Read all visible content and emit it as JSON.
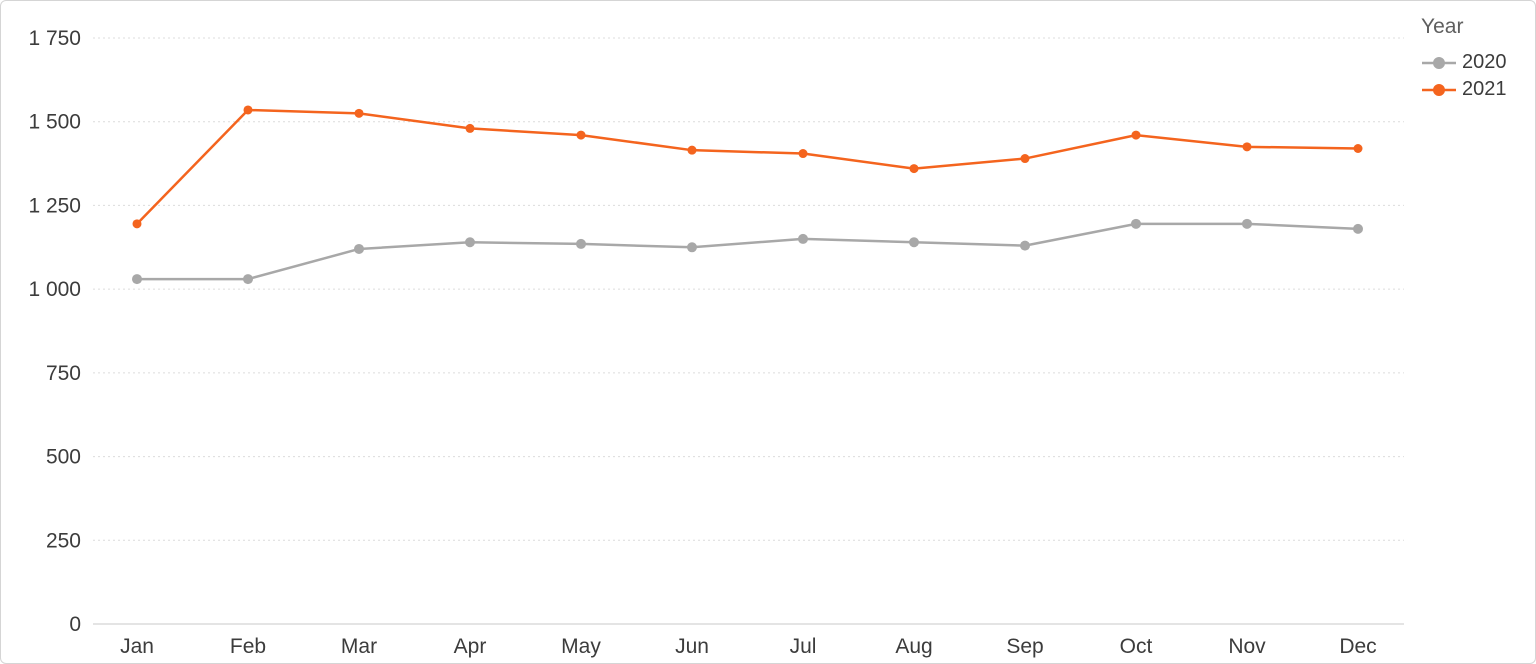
{
  "legend": {
    "title": "Year"
  },
  "chart_data": {
    "type": "line",
    "title": "",
    "xlabel": "",
    "ylabel": "",
    "categories": [
      "Jan",
      "Feb",
      "Mar",
      "Apr",
      "May",
      "Jun",
      "Jul",
      "Aug",
      "Sep",
      "Oct",
      "Nov",
      "Dec"
    ],
    "series": [
      {
        "name": "2020",
        "color": "#a8a8a8",
        "marker_radius": 5,
        "values": [
          1030,
          1030,
          1120,
          1140,
          1135,
          1125,
          1150,
          1140,
          1130,
          1195,
          1195,
          1180
        ]
      },
      {
        "name": "2021",
        "color": "#f4641e",
        "marker_radius": 4.5,
        "values": [
          1195,
          1535,
          1525,
          1480,
          1460,
          1415,
          1405,
          1360,
          1390,
          1460,
          1425,
          1420
        ]
      }
    ],
    "ylim": [
      0,
      1750
    ],
    "yticks": [
      0,
      250,
      500,
      750,
      1000,
      1250,
      1500,
      1750
    ],
    "ytick_labels": [
      "0",
      "250",
      "500",
      "750",
      "1 000",
      "1 250",
      "1 500",
      "1 750"
    ],
    "grid": "horizontal-dotted",
    "legend_position": "top-right",
    "colors": {
      "gridline": "#dcdcdc",
      "axis_line": "#c8c8c8",
      "tick_text": "#3c3c3c"
    }
  }
}
